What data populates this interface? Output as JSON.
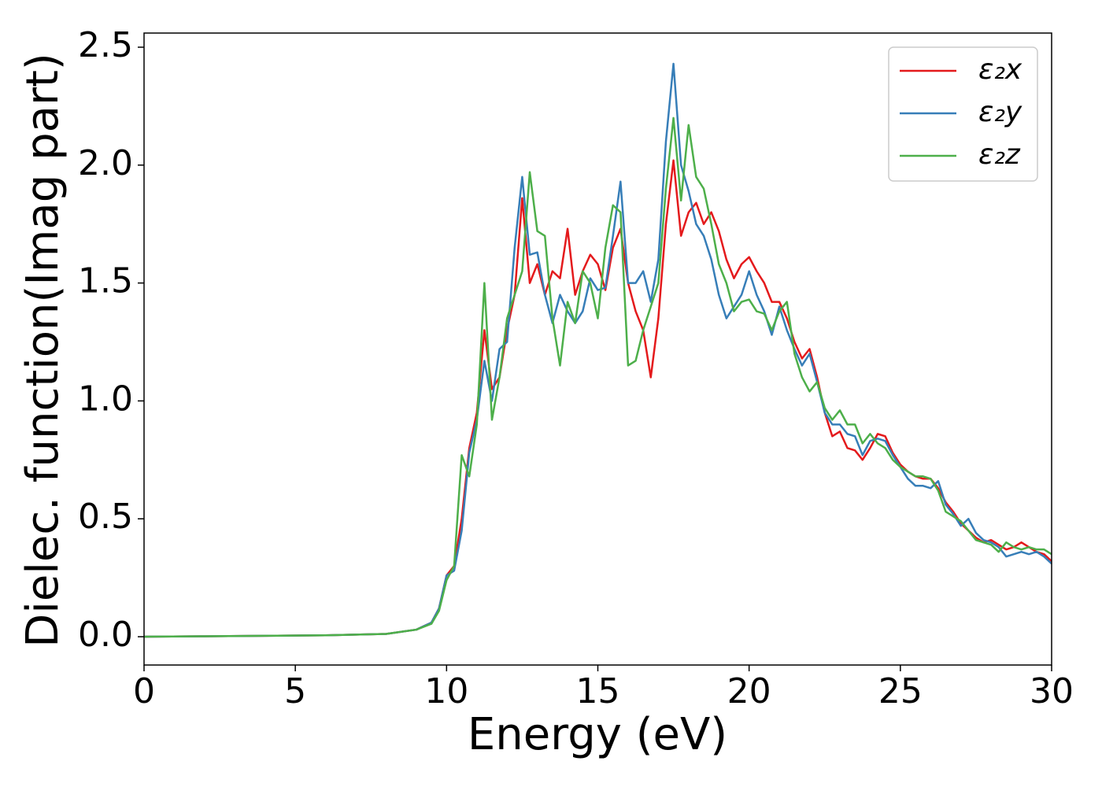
{
  "chart_data": {
    "type": "line",
    "xlabel": "Energy (eV)",
    "ylabel": "Dielec. function(Imag part)",
    "x": [
      0,
      2,
      4,
      6,
      8,
      9,
      9.5,
      9.75,
      10,
      10.25,
      10.5,
      10.75,
      11,
      11.25,
      11.5,
      11.75,
      12,
      12.25,
      12.5,
      12.75,
      13,
      13.25,
      13.5,
      13.75,
      14,
      14.25,
      14.5,
      14.75,
      15,
      15.25,
      15.5,
      15.75,
      16,
      16.25,
      16.5,
      16.75,
      17,
      17.25,
      17.5,
      17.75,
      18,
      18.25,
      18.5,
      18.75,
      19,
      19.25,
      19.5,
      19.75,
      20,
      20.25,
      20.5,
      20.75,
      21,
      21.25,
      21.5,
      21.75,
      22,
      22.25,
      22.5,
      22.75,
      23,
      23.25,
      23.5,
      23.75,
      24,
      24.25,
      24.5,
      24.75,
      25,
      25.25,
      25.5,
      25.75,
      26,
      26.25,
      26.5,
      26.75,
      27,
      27.25,
      27.5,
      27.75,
      28,
      28.25,
      28.5,
      28.75,
      29,
      29.25,
      29.5,
      29.75,
      30
    ],
    "series": [
      {
        "name": "ε₂x",
        "color": "#e41a1c",
        "values": [
          0,
          0.002,
          0.004,
          0.006,
          0.012,
          0.03,
          0.06,
          0.12,
          0.26,
          0.3,
          0.5,
          0.8,
          0.95,
          1.3,
          1.05,
          1.1,
          1.3,
          1.45,
          1.86,
          1.5,
          1.58,
          1.45,
          1.55,
          1.52,
          1.73,
          1.45,
          1.55,
          1.62,
          1.58,
          1.47,
          1.65,
          1.73,
          1.5,
          1.38,
          1.3,
          1.1,
          1.35,
          1.75,
          2.02,
          1.7,
          1.8,
          1.84,
          1.75,
          1.8,
          1.72,
          1.6,
          1.52,
          1.58,
          1.61,
          1.55,
          1.5,
          1.42,
          1.42,
          1.35,
          1.25,
          1.18,
          1.22,
          1.1,
          0.95,
          0.85,
          0.87,
          0.8,
          0.79,
          0.75,
          0.8,
          0.86,
          0.85,
          0.78,
          0.73,
          0.7,
          0.68,
          0.67,
          0.67,
          0.63,
          0.57,
          0.53,
          0.48,
          0.45,
          0.42,
          0.4,
          0.41,
          0.39,
          0.37,
          0.38,
          0.4,
          0.38,
          0.36,
          0.35,
          0.32
        ]
      },
      {
        "name": "ε₂y",
        "color": "#377eb8",
        "values": [
          0,
          0.002,
          0.004,
          0.006,
          0.012,
          0.03,
          0.06,
          0.12,
          0.26,
          0.28,
          0.45,
          0.78,
          0.92,
          1.17,
          1.0,
          1.22,
          1.25,
          1.65,
          1.95,
          1.62,
          1.63,
          1.45,
          1.33,
          1.45,
          1.38,
          1.33,
          1.38,
          1.52,
          1.47,
          1.48,
          1.7,
          1.93,
          1.5,
          1.5,
          1.55,
          1.42,
          1.6,
          2.1,
          2.43,
          2.0,
          1.89,
          1.75,
          1.7,
          1.6,
          1.45,
          1.35,
          1.4,
          1.45,
          1.55,
          1.45,
          1.38,
          1.28,
          1.4,
          1.3,
          1.22,
          1.15,
          1.2,
          1.08,
          0.95,
          0.9,
          0.9,
          0.86,
          0.85,
          0.77,
          0.83,
          0.84,
          0.83,
          0.77,
          0.72,
          0.67,
          0.64,
          0.64,
          0.63,
          0.66,
          0.56,
          0.52,
          0.47,
          0.5,
          0.44,
          0.41,
          0.4,
          0.38,
          0.34,
          0.35,
          0.36,
          0.35,
          0.36,
          0.34,
          0.31
        ]
      },
      {
        "name": "ε₂z",
        "color": "#4daf4a",
        "values": [
          0,
          0.002,
          0.004,
          0.006,
          0.012,
          0.03,
          0.055,
          0.11,
          0.24,
          0.3,
          0.77,
          0.68,
          0.9,
          1.5,
          0.92,
          1.1,
          1.35,
          1.45,
          1.55,
          1.97,
          1.72,
          1.7,
          1.35,
          1.15,
          1.42,
          1.33,
          1.55,
          1.5,
          1.35,
          1.65,
          1.83,
          1.8,
          1.15,
          1.17,
          1.3,
          1.4,
          1.5,
          1.9,
          2.2,
          1.85,
          2.17,
          1.95,
          1.9,
          1.75,
          1.58,
          1.5,
          1.38,
          1.42,
          1.43,
          1.38,
          1.37,
          1.3,
          1.38,
          1.42,
          1.2,
          1.1,
          1.04,
          1.08,
          0.97,
          0.92,
          0.96,
          0.9,
          0.9,
          0.82,
          0.86,
          0.82,
          0.8,
          0.75,
          0.72,
          0.7,
          0.68,
          0.68,
          0.67,
          0.62,
          0.53,
          0.51,
          0.49,
          0.45,
          0.41,
          0.4,
          0.39,
          0.36,
          0.4,
          0.38,
          0.37,
          0.38,
          0.37,
          0.37,
          0.35
        ]
      }
    ],
    "xlim": [
      0,
      30
    ],
    "xticks": [
      0,
      5,
      10,
      15,
      20,
      25,
      30
    ],
    "ylim": [
      -0.12,
      2.56
    ],
    "yticks": [
      {
        "value": 0,
        "label": "0.0"
      },
      0.5,
      {
        "value": 1,
        "label": "1.0"
      },
      1.5,
      {
        "value": 2,
        "label": "2.0"
      },
      2.5
    ],
    "grid": false,
    "legend": "upper right"
  }
}
